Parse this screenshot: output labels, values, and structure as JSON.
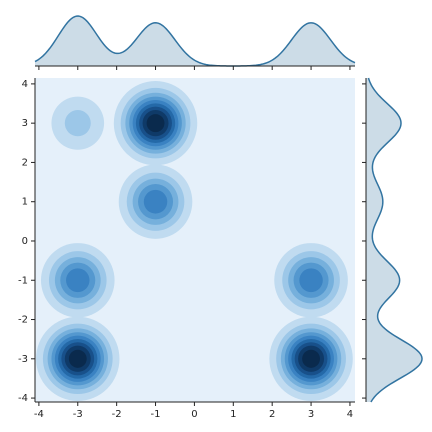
{
  "chart_data": {
    "type": "kde",
    "series": [
      {
        "x": [
          -3,
          -1,
          -1,
          -3,
          -3,
          3,
          3
        ],
        "y": [
          3,
          3,
          1,
          -1,
          -3,
          -1,
          -3
        ],
        "weight": [
          0.25,
          1,
          0.6,
          0.6,
          1,
          0.6,
          1
        ]
      }
    ],
    "level_colors": [
      "#e5f0fa",
      "#c0dbf0",
      "#9cc7e8",
      "#76b0dc",
      "#5498cf",
      "#3a82c2",
      "#2469a8",
      "#18508a",
      "#0f3a68",
      "#0a2a4d"
    ],
    "marginal_color": "#3274a1",
    "xlim": [
      -4.1,
      4.13
    ],
    "ylim": [
      -4.1,
      4.15
    ],
    "xticks": [
      -4,
      -3,
      -2,
      -1,
      0,
      1,
      2,
      3,
      4
    ],
    "yticks": [
      -4,
      -3,
      -2,
      -1,
      0,
      1,
      2,
      3,
      4
    ]
  }
}
